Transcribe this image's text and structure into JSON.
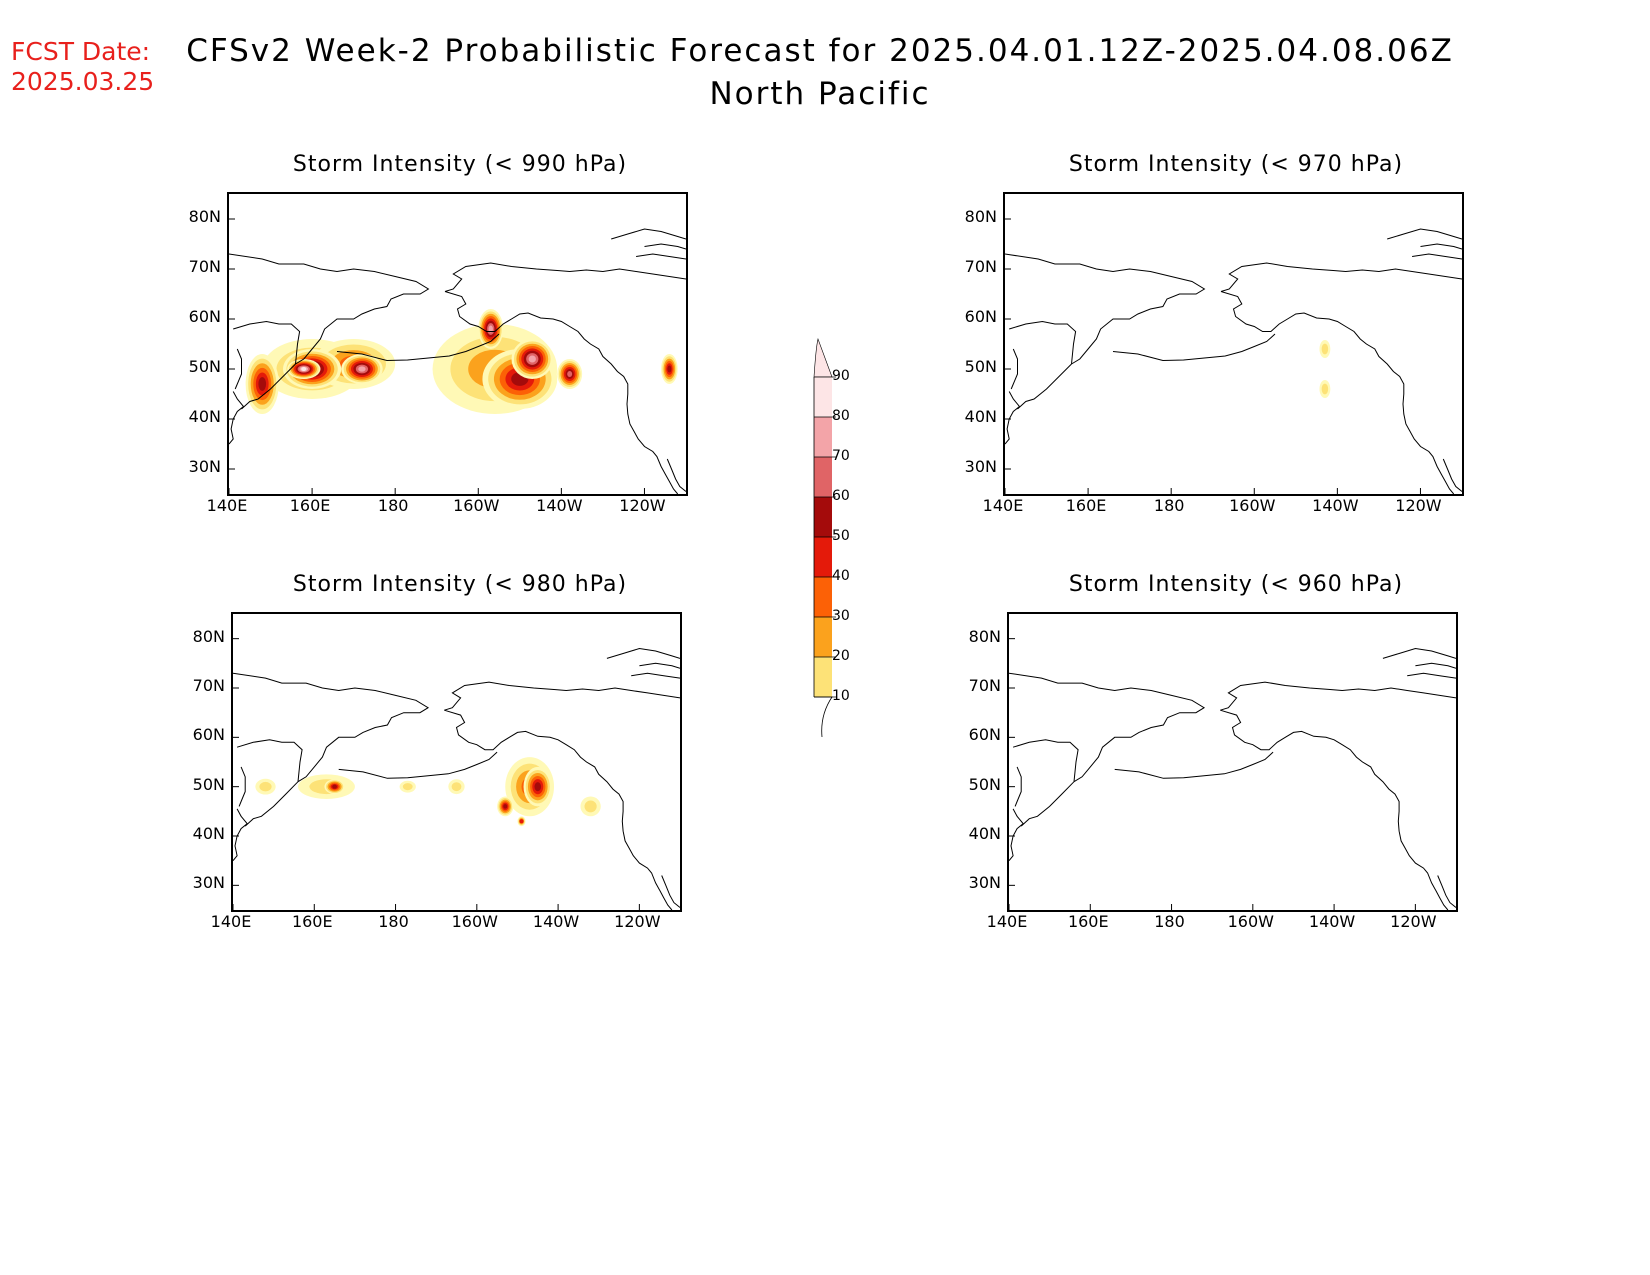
{
  "fcst_date": {
    "label": "FCST Date:",
    "value": "2025.03.25"
  },
  "title": {
    "line1": "CFSv2 Week-2 Probabilistic Forecast for 2025.04.01.12Z-2025.04.08.06Z",
    "line2": "North Pacific"
  },
  "axes": {
    "lat_ticks": [
      "80N",
      "70N",
      "60N",
      "50N",
      "40N",
      "30N"
    ],
    "lon_ticks": [
      "140E",
      "160E",
      "180",
      "160W",
      "140W",
      "120W"
    ]
  },
  "colorbar": {
    "levels": [
      "10",
      "20",
      "30",
      "40",
      "50",
      "60",
      "70",
      "80",
      "90"
    ],
    "colors": [
      "#fff9b6",
      "#fde277",
      "#fba21d",
      "#fc6106",
      "#e41a0a",
      "#a40b0b",
      "#e06466",
      "#f3a4a8",
      "#fde5e6"
    ]
  },
  "panels": [
    {
      "title": "Storm Intensity (< 990 hPa)",
      "blobs": [
        {
          "lon": 160,
          "lat": 50,
          "rx": 12,
          "ry": 6,
          "level": 2
        },
        {
          "lon": 170,
          "lat": 51,
          "rx": 10,
          "ry": 5,
          "level": 3
        },
        {
          "lon": 148,
          "lat": 47,
          "rx": 4,
          "ry": 6,
          "level": 5
        },
        {
          "lon": 160,
          "lat": 50,
          "rx": 7,
          "ry": 4,
          "level": 7
        },
        {
          "lon": 172,
          "lat": 50,
          "rx": 5,
          "ry": 3,
          "level": 7
        },
        {
          "lon": 158,
          "lat": 50,
          "rx": 4,
          "ry": 2,
          "level": 8
        },
        {
          "lon": 204,
          "lat": 50,
          "rx": 15,
          "ry": 9,
          "level": 2
        },
        {
          "lon": 210,
          "lat": 48,
          "rx": 9,
          "ry": 6,
          "level": 5
        },
        {
          "lon": 203,
          "lat": 58,
          "rx": 3,
          "ry": 4,
          "level": 7
        },
        {
          "lon": 213,
          "lat": 52,
          "rx": 5,
          "ry": 4,
          "level": 7
        },
        {
          "lon": 222,
          "lat": 49,
          "rx": 3,
          "ry": 3,
          "level": 6
        },
        {
          "lon": 246,
          "lat": 50,
          "rx": 2,
          "ry": 3,
          "level": 5
        }
      ]
    },
    {
      "title": "Storm Intensity (< 970 hPa)",
      "blobs": [
        {
          "lon": 217,
          "lat": 54,
          "rx": 1.3,
          "ry": 1.8,
          "level": 1
        },
        {
          "lon": 217,
          "lat": 46,
          "rx": 1.3,
          "ry": 1.8,
          "level": 1
        }
      ]
    },
    {
      "title": "Storm Intensity (< 980 hPa)",
      "blobs": [
        {
          "lon": 148,
          "lat": 50,
          "rx": 2.5,
          "ry": 1.6,
          "level": 1
        },
        {
          "lon": 163,
          "lat": 50,
          "rx": 7,
          "ry": 2.5,
          "level": 1
        },
        {
          "lon": 165,
          "lat": 50,
          "rx": 2.5,
          "ry": 1.5,
          "level": 5
        },
        {
          "lon": 183,
          "lat": 50,
          "rx": 2,
          "ry": 1.2,
          "level": 1
        },
        {
          "lon": 195,
          "lat": 50,
          "rx": 2,
          "ry": 1.5,
          "level": 1
        },
        {
          "lon": 213,
          "lat": 50,
          "rx": 6,
          "ry": 6,
          "level": 3
        },
        {
          "lon": 215,
          "lat": 50,
          "rx": 3.5,
          "ry": 4,
          "level": 5
        },
        {
          "lon": 207,
          "lat": 46,
          "rx": 2,
          "ry": 2,
          "level": 5
        },
        {
          "lon": 211,
          "lat": 43,
          "rx": 1,
          "ry": 1,
          "level": 4
        },
        {
          "lon": 228,
          "lat": 46,
          "rx": 2.5,
          "ry": 2,
          "level": 1
        }
      ]
    },
    {
      "title": "Storm Intensity (< 960 hPa)",
      "blobs": []
    }
  ]
}
